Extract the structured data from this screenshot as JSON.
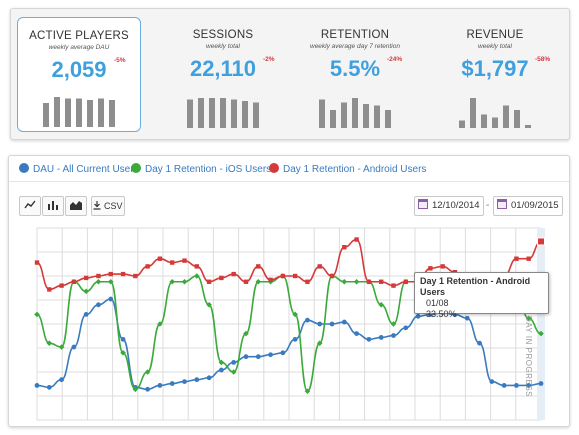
{
  "kpis": [
    {
      "title": "ACTIVE PLAYERS",
      "subtitle": "weekly average DAU",
      "value": "2,059",
      "delta": "-5%",
      "selected": true,
      "sparkline": [
        0.8,
        1.0,
        0.95,
        0.95,
        0.9,
        0.95,
        0.9
      ]
    },
    {
      "title": "SESSIONS",
      "subtitle": "weekly total",
      "value": "22,110",
      "delta": "-2%",
      "selected": false,
      "sparkline": [
        0.95,
        1.0,
        1.0,
        1.0,
        0.95,
        0.9,
        0.85
      ]
    },
    {
      "title": "RETENTION",
      "subtitle": "weekly average day 7 retention",
      "value": "5.5%",
      "delta": "-24%",
      "selected": false,
      "sparkline": [
        0.95,
        0.6,
        0.85,
        1.0,
        0.8,
        0.75,
        0.6
      ]
    },
    {
      "title": "REVENUE",
      "subtitle": "weekly total",
      "value": "$1,797",
      "delta": "-58%",
      "selected": false,
      "sparkline": [
        0.25,
        1.0,
        0.45,
        0.35,
        0.75,
        0.6,
        0.1
      ]
    }
  ],
  "legend": [
    {
      "label": "DAU - All Current Users",
      "color": "#3a7bbf"
    },
    {
      "label": "Day 1 Retention - iOS Users",
      "color": "#3aaa3a"
    },
    {
      "label": "Day 1 Retention - Android Users",
      "color": "#d43a3a"
    }
  ],
  "toolbar": {
    "line_icon": "line-chart-icon",
    "bar_icon": "bar-chart-icon",
    "area_icon": "area-chart-icon",
    "csv_label": "CSV",
    "download_icon": "download-icon",
    "calendar_icon": "calendar-icon"
  },
  "date_range": {
    "start": "12/10/2014",
    "separator": "-",
    "end": "01/09/2015"
  },
  "tooltip": {
    "series": "Day 1 Retention - Android Users",
    "date": "01/08",
    "value": "33.50%"
  },
  "side_label": "DAY IN PROGRESS",
  "chart_data": {
    "type": "line",
    "grid": true,
    "series": [
      {
        "name": "DAU - All Current Users",
        "color": "#3a7bbf",
        "values": [
          0.18,
          0.17,
          0.21,
          0.38,
          0.55,
          0.6,
          0.63,
          0.42,
          0.17,
          0.16,
          0.18,
          0.19,
          0.2,
          0.21,
          0.22,
          0.26,
          0.3,
          0.33,
          0.33,
          0.34,
          0.35,
          0.42,
          0.52,
          0.5,
          0.5,
          0.51,
          0.45,
          0.42,
          0.43,
          0.44,
          0.48,
          0.54,
          0.55,
          0.56,
          0.55,
          0.53,
          0.4,
          0.2,
          0.18,
          0.18,
          0.18,
          0.19
        ]
      },
      {
        "name": "Day 1 Retention - iOS Users",
        "color": "#3aaa3a",
        "values": [
          0.55,
          0.4,
          0.38,
          0.72,
          0.67,
          0.72,
          0.72,
          0.35,
          0.16,
          0.25,
          0.5,
          0.72,
          0.72,
          0.75,
          0.6,
          0.3,
          0.25,
          0.45,
          0.72,
          0.72,
          0.75,
          0.55,
          0.15,
          0.4,
          0.75,
          0.72,
          0.72,
          0.72,
          0.6,
          0.5,
          0.72,
          0.72,
          0.74,
          0.6,
          0.6,
          0.6,
          0.62,
          0.58,
          0.72,
          0.65,
          0.53,
          0.45
        ]
      },
      {
        "name": "Day 1 Retention - Android Users",
        "color": "#d43a3a",
        "values": [
          0.82,
          0.68,
          0.7,
          0.72,
          0.74,
          0.75,
          0.76,
          0.76,
          0.75,
          0.8,
          0.84,
          0.82,
          0.83,
          0.8,
          0.72,
          0.74,
          0.76,
          0.72,
          0.8,
          0.73,
          0.75,
          0.75,
          0.72,
          0.8,
          0.75,
          0.9,
          0.94,
          0.72,
          0.72,
          0.7,
          0.72,
          0.72,
          0.79,
          0.8,
          0.77,
          0.72,
          0.74,
          0.72,
          0.75,
          0.84,
          0.84,
          0.93
        ]
      }
    ]
  }
}
